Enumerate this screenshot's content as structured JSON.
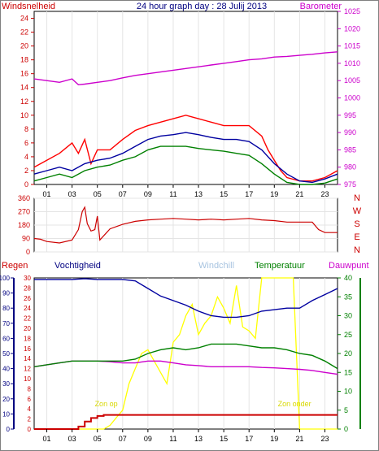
{
  "chart_data": [
    {
      "type": "line",
      "title": "24 hour graph day : 28 Julij 2013",
      "left_axis_label": "Windsnelheid",
      "right_axis_label": "Barometer",
      "x_ticks": [
        "01",
        "03",
        "05",
        "07",
        "09",
        "11",
        "13",
        "15",
        "17",
        "19",
        "21",
        "23"
      ],
      "xlim": [
        0,
        24
      ],
      "ylim_left": [
        0,
        25
      ],
      "y_ticks_left": [
        0,
        2,
        4,
        6,
        8,
        10,
        12,
        14,
        16,
        18,
        20,
        22,
        24
      ],
      "ylim_right": [
        975,
        1025
      ],
      "y_ticks_right": [
        975,
        980,
        985,
        990,
        995,
        1000,
        1005,
        1010,
        1015,
        1020,
        1025
      ],
      "colors": {
        "gust": "#ff0000",
        "wind_avg": "#0000a0",
        "wind_low": "#008000",
        "barometer": "#cc00cc"
      },
      "series": [
        {
          "key": "gust",
          "x": [
            0,
            1,
            2,
            3,
            3.5,
            4,
            4.5,
            5,
            6,
            7,
            8,
            9,
            10,
            11,
            12,
            13,
            14,
            15,
            16,
            17,
            18,
            18.5,
            19,
            19.5,
            20,
            21,
            22,
            23,
            24
          ],
          "values": [
            2.5,
            3.5,
            4.5,
            6,
            4.5,
            6.5,
            3,
            5,
            5,
            6.5,
            7.8,
            8.5,
            9,
            9.5,
            10,
            9.5,
            9,
            8.5,
            8.5,
            8.5,
            7,
            5,
            3.5,
            2,
            1,
            0.5,
            0.5,
            1,
            2
          ]
        },
        {
          "key": "wind_avg",
          "x": [
            0,
            1,
            2,
            3,
            4,
            5,
            6,
            7,
            8,
            9,
            10,
            11,
            12,
            13,
            14,
            15,
            16,
            17,
            18,
            19,
            20,
            21,
            22,
            23,
            24
          ],
          "values": [
            1.5,
            2,
            2.5,
            2,
            3,
            3.5,
            3.8,
            4.5,
            5.5,
            6.5,
            7,
            7.2,
            7.5,
            7.2,
            6.8,
            6.5,
            6.5,
            6.2,
            5,
            3,
            1.5,
            0.5,
            0.3,
            0.8,
            1.5
          ]
        },
        {
          "key": "wind_low",
          "x": [
            0,
            1,
            2,
            3,
            4,
            5,
            6,
            7,
            8,
            9,
            10,
            11,
            12,
            13,
            14,
            15,
            16,
            17,
            18,
            19,
            20,
            21,
            22,
            23,
            24
          ],
          "values": [
            0.5,
            1,
            1.5,
            1,
            2,
            2.5,
            2.8,
            3.5,
            4,
            5,
            5.5,
            5.5,
            5.5,
            5.2,
            5,
            4.8,
            4.5,
            4.2,
            3,
            1.5,
            0.3,
            0,
            0,
            0.2,
            0.8
          ]
        },
        {
          "key": "barometer",
          "x": [
            0,
            1,
            2,
            3,
            3.5,
            4,
            5,
            6,
            7,
            8,
            9,
            10,
            11,
            12,
            13,
            14,
            15,
            16,
            17,
            18,
            19,
            20,
            21,
            22,
            23,
            24
          ],
          "values": [
            1005.5,
            1005,
            1004.5,
            1005.5,
            1003.8,
            1004,
            1004.5,
            1005,
            1005.8,
            1006.5,
            1007,
            1007.5,
            1008,
            1008.5,
            1009,
            1009.5,
            1010,
            1010.5,
            1011,
            1011.3,
            1011.8,
            1012,
            1012.3,
            1012.6,
            1013,
            1013.3
          ]
        }
      ]
    },
    {
      "type": "line",
      "ylim": [
        0,
        360
      ],
      "y_ticks": [
        0,
        90,
        180,
        270,
        360
      ],
      "compass_labels": [
        "N",
        "W",
        "S",
        "E",
        "N"
      ],
      "series": [
        {
          "key": "direction",
          "color": "#cc0000",
          "x": [
            0,
            0.5,
            1,
            2,
            3,
            3.5,
            3.8,
            4,
            4.2,
            4.5,
            4.8,
            5,
            5.2,
            6,
            7,
            8,
            9,
            10,
            11,
            12,
            13,
            14,
            15,
            16,
            17,
            18,
            19,
            20,
            21,
            22,
            22.5,
            23,
            24
          ],
          "values": [
            90,
            85,
            70,
            60,
            80,
            150,
            270,
            300,
            190,
            140,
            150,
            240,
            80,
            155,
            185,
            205,
            215,
            220,
            225,
            220,
            215,
            220,
            215,
            220,
            225,
            215,
            210,
            200,
            200,
            200,
            150,
            130,
            130
          ]
        }
      ]
    },
    {
      "type": "line",
      "labels": {
        "rain": "Regen",
        "humidity": "Vochtigheid",
        "windchill": "Windchill",
        "temperature": "Temperatuur",
        "dewpoint": "Dauwpunt"
      },
      "x_ticks": [
        "01",
        "03",
        "05",
        "07",
        "09",
        "11",
        "13",
        "15",
        "17",
        "19",
        "21",
        "23"
      ],
      "y_ticks_humidity": [
        0,
        10,
        20,
        30,
        40,
        50,
        60,
        70,
        80,
        90,
        100
      ],
      "y_ticks_rain": [
        0,
        2,
        4,
        6,
        8,
        10,
        12,
        14,
        16,
        18,
        20,
        22,
        24,
        26,
        28,
        30
      ],
      "y_ticks_right": [
        0,
        5,
        10,
        15,
        20,
        25,
        30,
        35,
        40
      ],
      "annotations": {
        "sun_up": "Zon op",
        "sun_down": "Zon onder"
      },
      "sun_up_hour": 5.7,
      "sun_down_hour": 20.6,
      "colors": {
        "humidity": "#0000a0",
        "temperature": "#008000",
        "dewpoint": "#cc00cc",
        "rain": "#cc0000",
        "sun": "#ffff00"
      },
      "series": [
        {
          "key": "humidity",
          "x": [
            0,
            1,
            2,
            3,
            4,
            5,
            6,
            7,
            8,
            9,
            10,
            11,
            12,
            13,
            14,
            15,
            16,
            17,
            18,
            19,
            20,
            21,
            22,
            23,
            24
          ],
          "values": [
            99,
            99,
            99,
            99,
            99.5,
            99,
            99,
            99,
            98,
            93,
            88,
            85,
            82,
            78,
            75,
            74,
            74,
            75,
            78,
            79,
            80,
            80,
            85,
            89,
            93
          ]
        },
        {
          "key": "temperature",
          "x": [
            0,
            1,
            2,
            3,
            4,
            5,
            6,
            7,
            8,
            9,
            10,
            11,
            12,
            13,
            14,
            15,
            16,
            17,
            18,
            19,
            20,
            21,
            22,
            23,
            24
          ],
          "values": [
            16.5,
            17,
            17.5,
            18,
            18,
            18,
            18,
            18,
            18.5,
            20,
            21,
            21.5,
            21,
            21.5,
            22.5,
            22.5,
            22.5,
            22,
            21.5,
            21.5,
            21,
            20,
            19.5,
            18,
            16
          ]
        },
        {
          "key": "dewpoint",
          "x": [
            0,
            1,
            2,
            3,
            4,
            5,
            6,
            7,
            8,
            9,
            10,
            11,
            12,
            13,
            14,
            15,
            16,
            17,
            18,
            19,
            20,
            21,
            22,
            23,
            24
          ],
          "values": [
            16.5,
            17,
            17.5,
            18,
            18,
            18,
            17.8,
            17.5,
            17.5,
            18,
            18,
            17.5,
            17,
            16.8,
            16.5,
            16.5,
            16.5,
            16.5,
            16.3,
            16.2,
            16,
            15.8,
            15.5,
            15,
            14.5
          ]
        },
        {
          "key": "rain",
          "x": [
            0,
            0.4,
            3,
            3.5,
            4,
            4.5,
            5,
            5.5,
            6,
            7,
            10,
            15,
            20,
            20.5,
            23,
            24
          ],
          "values": [
            0,
            0,
            0,
            0.5,
            1.5,
            2.2,
            2.6,
            2.8,
            2.8,
            2.8,
            2.8,
            2.8,
            2.8,
            2.8,
            2.8,
            2.8
          ]
        },
        {
          "key": "solar",
          "x": [
            0,
            5.5,
            6,
            6.5,
            7,
            7.5,
            8,
            8.5,
            9,
            9.5,
            10,
            10.5,
            11,
            11.5,
            12,
            12.5,
            13,
            13.5,
            14,
            14.5,
            15,
            15.5,
            16,
            16.5,
            17,
            17.5,
            18,
            18.5,
            19,
            19.5,
            20,
            20.5,
            21,
            24
          ],
          "values": [
            0,
            0,
            1,
            3,
            5,
            12,
            16,
            20,
            21,
            18,
            15,
            12,
            23,
            25,
            30,
            33,
            25,
            28,
            30,
            35,
            32,
            28,
            38,
            27,
            26,
            24,
            40,
            40,
            40,
            40,
            40,
            40,
            0,
            0
          ]
        }
      ]
    }
  ]
}
